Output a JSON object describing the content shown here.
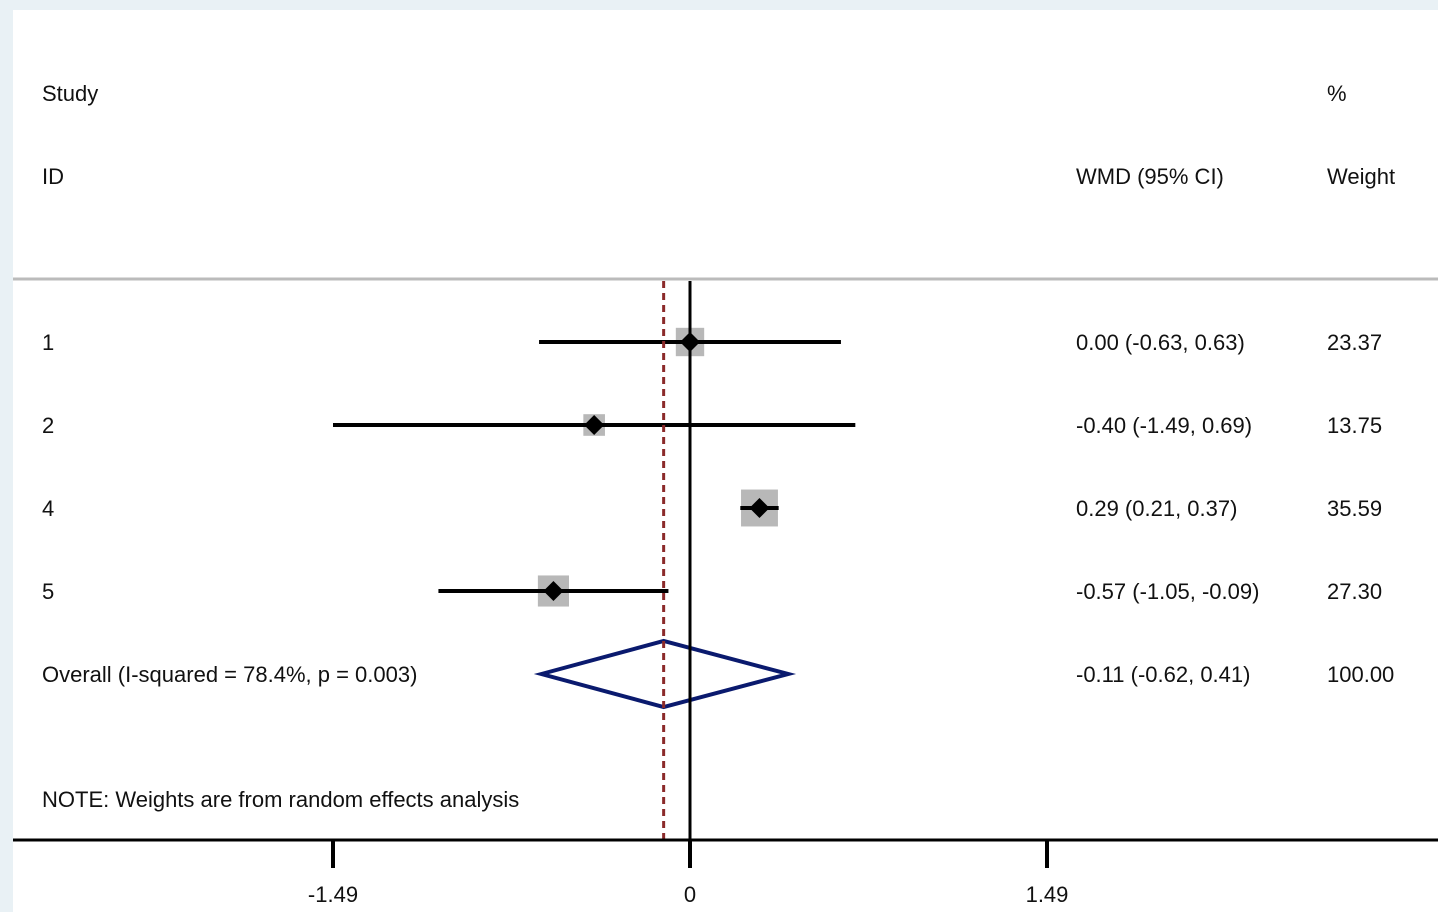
{
  "chart_data": {
    "type": "forest",
    "header": {
      "study_line1": "Study",
      "study_line2": "ID",
      "effect_label": "WMD (95% CI)",
      "weight_line1": "%",
      "weight_line2": "Weight"
    },
    "studies": [
      {
        "id": "1",
        "estimate": 0.0,
        "ci_low": -0.63,
        "ci_high": 0.63,
        "ci_text": "0.00 (-0.63, 0.63)",
        "weight": 23.37,
        "weight_text": "23.37"
      },
      {
        "id": "2",
        "estimate": -0.4,
        "ci_low": -1.49,
        "ci_high": 0.69,
        "ci_text": "-0.40 (-1.49, 0.69)",
        "weight": 13.75,
        "weight_text": "13.75"
      },
      {
        "id": "4",
        "estimate": 0.29,
        "ci_low": 0.21,
        "ci_high": 0.37,
        "ci_text": "0.29 (0.21, 0.37)",
        "weight": 35.59,
        "weight_text": "35.59"
      },
      {
        "id": "5",
        "estimate": -0.57,
        "ci_low": -1.05,
        "ci_high": -0.09,
        "ci_text": "-0.57 (-1.05, -0.09)",
        "weight": 27.3,
        "weight_text": "27.30"
      }
    ],
    "overall": {
      "label": "Overall  (I-squared = 78.4%, p = 0.003)",
      "estimate": -0.11,
      "ci_low": -0.62,
      "ci_high": 0.41,
      "ci_text": "-0.11 (-0.62, 0.41)",
      "weight_text": "100.00"
    },
    "note": "NOTE: Weights are from random effects analysis",
    "x_ticks": [
      {
        "value": -1.49,
        "label": "-1.49"
      },
      {
        "value": 0,
        "label": "0"
      },
      {
        "value": 1.49,
        "label": "1.49"
      }
    ],
    "xlim": [
      -1.49,
      1.49
    ],
    "null_line": 0,
    "colors": {
      "background": "#e9f1f5",
      "plot": "#ffffff",
      "marker": "#000000",
      "weight_box": "#b8b8b8",
      "diamond": "#0a1a6e",
      "overall_line": "#8b2a2a",
      "separator": "#bbbbbb"
    }
  }
}
